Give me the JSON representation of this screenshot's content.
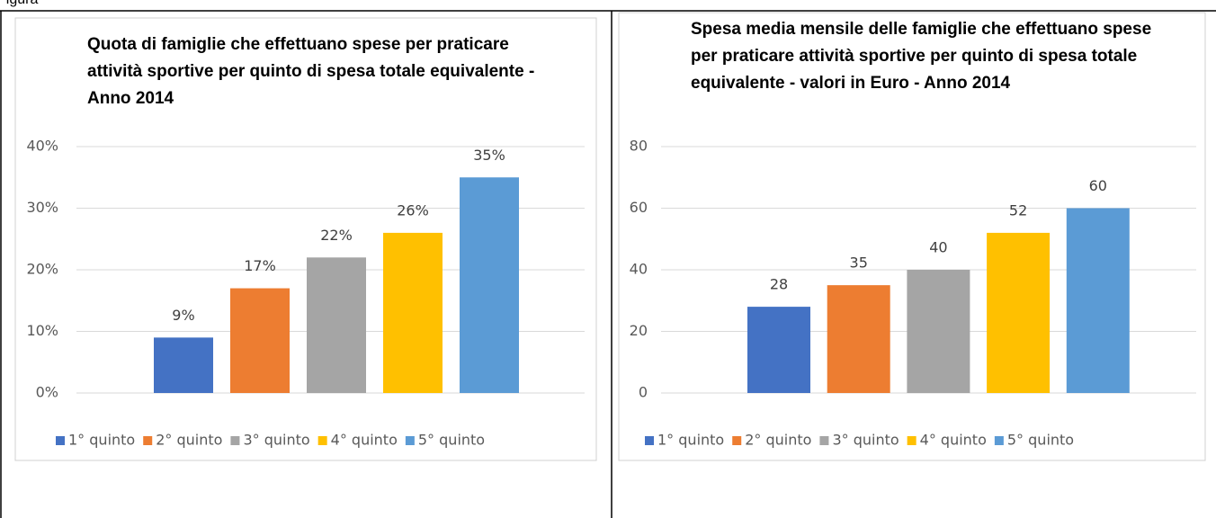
{
  "caption": "Figura",
  "chart_data": [
    {
      "type": "bar",
      "title": "Quota di famiglie che effettuano spese per praticare attività sportive per quinto di spesa totale equivalente - Anno 2014",
      "categories": [
        "1° quinto",
        "2° quinto",
        "3° quinto",
        "4° quinto",
        "5° quinto"
      ],
      "colors": [
        "#4472c4",
        "#ed7d31",
        "#a5a5a5",
        "#ffc000",
        "#5b9bd5"
      ],
      "values": [
        9,
        17,
        22,
        26,
        35
      ],
      "value_labels": [
        "9%",
        "17%",
        "22%",
        "26%",
        "35%"
      ],
      "ylim": [
        0,
        40
      ],
      "yticks": [
        {
          "value": 0,
          "label": "0%"
        },
        {
          "value": 10,
          "label": "10%"
        },
        {
          "value": 20,
          "label": "20%"
        },
        {
          "value": 30,
          "label": "30%"
        },
        {
          "value": 40,
          "label": "40%"
        }
      ],
      "grid": true,
      "legend": "bottom"
    },
    {
      "type": "bar",
      "title": "Spesa media mensile delle famiglie che effettuano spese per praticare attività sportive per quinto di spesa totale equivalente - valori in Euro - Anno 2014",
      "categories": [
        "1° quinto",
        "2° quinto",
        "3° quinto",
        "4° quinto",
        "5° quinto"
      ],
      "colors": [
        "#4472c4",
        "#ed7d31",
        "#a5a5a5",
        "#ffc000",
        "#5b9bd5"
      ],
      "values": [
        28,
        35,
        40,
        52,
        60
      ],
      "ylim": [
        0,
        80
      ],
      "yticks": [
        0,
        20,
        40,
        60,
        80
      ],
      "grid": true,
      "legend": "bottom"
    }
  ]
}
